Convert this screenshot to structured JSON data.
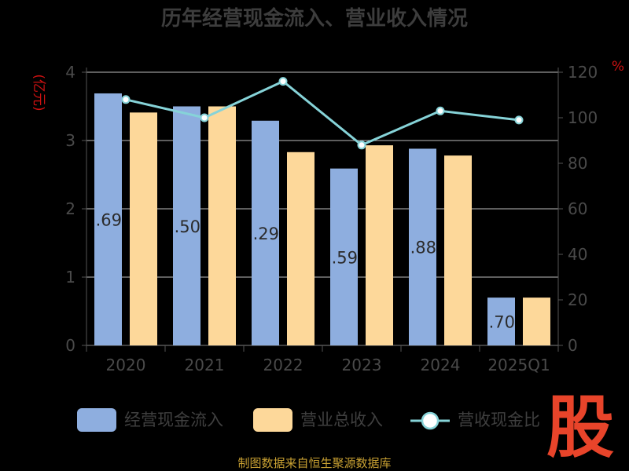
{
  "chart_data": {
    "type": "bar",
    "title": "历年经营现金流入、营业收入情况",
    "y_left_unit": "(亿元)",
    "y_right_unit": "%",
    "categories": [
      "2020",
      "2021",
      "2022",
      "2023",
      "2024",
      "2025Q1"
    ],
    "ylim_left": [
      0,
      4
    ],
    "yticks_left": [
      "0",
      "1",
      "2",
      "3",
      "4"
    ],
    "ylim_right": [
      0,
      120
    ],
    "yticks_right": [
      "0",
      "20",
      "40",
      "60",
      "80",
      "100",
      "120"
    ],
    "series": [
      {
        "name": "经营现金流入",
        "type": "bar",
        "axis": "left",
        "color": "#8eaedf",
        "values": [
          3.69,
          3.5,
          3.29,
          2.59,
          2.88,
          0.7
        ],
        "labels": [
          ".69",
          ".50",
          ".29",
          ".59",
          ".88",
          ".70"
        ]
      },
      {
        "name": "营业总收入",
        "type": "bar",
        "axis": "left",
        "color": "#fdd89a",
        "values": [
          3.41,
          3.5,
          2.83,
          2.93,
          2.78,
          0.7
        ]
      },
      {
        "name": "营收现金比",
        "type": "line",
        "axis": "right",
        "color": "#86d3d8",
        "values": [
          108,
          100,
          116,
          88,
          103,
          99
        ]
      }
    ],
    "legend_position": "bottom",
    "grid": true
  },
  "source": "制图数据来自恒生聚源数据库",
  "logo_text": "股"
}
